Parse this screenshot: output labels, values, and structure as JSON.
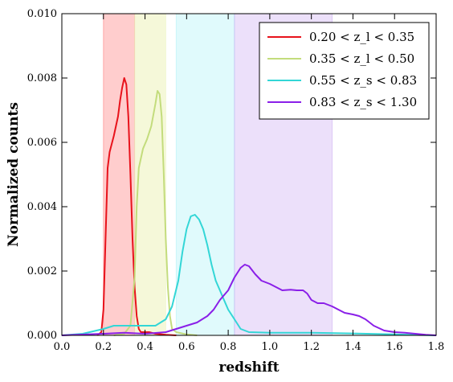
{
  "chart_data": {
    "type": "line",
    "xlabel": "redshift",
    "ylabel": "Normalized counts",
    "xlim": [
      0.0,
      1.8
    ],
    "ylim": [
      0.0,
      0.01
    ],
    "x_ticks": [
      "0.0",
      "0.2",
      "0.4",
      "0.6",
      "0.8",
      "1.0",
      "1.2",
      "1.4",
      "1.6",
      "1.8"
    ],
    "y_ticks": [
      "0.000",
      "0.002",
      "0.004",
      "0.006",
      "0.008",
      "0.010"
    ],
    "grid": false,
    "legend_position": "top-right",
    "bands": [
      {
        "range": [
          0.2,
          0.35
        ],
        "color": "#ff6f6f"
      },
      {
        "range": [
          0.35,
          0.5
        ],
        "color": "#eef3c0"
      },
      {
        "range": [
          0.55,
          0.83
        ],
        "color": "#a6f0f5"
      },
      {
        "range": [
          0.83,
          1.3
        ],
        "color": "#c8a6f2"
      }
    ],
    "series": [
      {
        "name": "0.20 < z_l < 0.35",
        "color": "#e8121b",
        "points": [
          [
            0.17,
            0
          ],
          [
            0.19,
            0.0001
          ],
          [
            0.2,
            0.0008
          ],
          [
            0.21,
            0.003
          ],
          [
            0.22,
            0.0052
          ],
          [
            0.23,
            0.0057
          ],
          [
            0.25,
            0.0062
          ],
          [
            0.27,
            0.0068
          ],
          [
            0.28,
            0.0073
          ],
          [
            0.29,
            0.0077
          ],
          [
            0.3,
            0.008
          ],
          [
            0.31,
            0.0078
          ],
          [
            0.32,
            0.0068
          ],
          [
            0.33,
            0.005
          ],
          [
            0.34,
            0.003
          ],
          [
            0.35,
            0.0015
          ],
          [
            0.36,
            0.0006
          ],
          [
            0.37,
            0.0002
          ],
          [
            0.38,
            0.0001
          ],
          [
            0.4,
            0.0001
          ],
          [
            0.42,
            0.0001
          ],
          [
            0.45,
            5e-05
          ],
          [
            0.5,
            2e-05
          ],
          [
            0.55,
            0
          ]
        ]
      },
      {
        "name": "0.35 < z_l < 0.50",
        "color": "#c3dc7c",
        "points": [
          [
            0.25,
            0
          ],
          [
            0.3,
            5e-05
          ],
          [
            0.33,
            0.0003
          ],
          [
            0.35,
            0.0018
          ],
          [
            0.36,
            0.004
          ],
          [
            0.37,
            0.0052
          ],
          [
            0.39,
            0.0058
          ],
          [
            0.41,
            0.0061
          ],
          [
            0.43,
            0.0065
          ],
          [
            0.45,
            0.0072
          ],
          [
            0.46,
            0.0076
          ],
          [
            0.47,
            0.0075
          ],
          [
            0.48,
            0.0068
          ],
          [
            0.49,
            0.005
          ],
          [
            0.5,
            0.003
          ],
          [
            0.51,
            0.0015
          ],
          [
            0.52,
            0.0006
          ],
          [
            0.53,
            0.0002
          ],
          [
            0.55,
            0.0001
          ],
          [
            0.6,
            3e-05
          ],
          [
            0.65,
            0
          ]
        ]
      },
      {
        "name": "0.55 < z_s < 0.83",
        "color": "#33d6d6",
        "points": [
          [
            0.0,
            0
          ],
          [
            0.1,
            5e-05
          ],
          [
            0.2,
            0.0002
          ],
          [
            0.25,
            0.0003
          ],
          [
            0.3,
            0.0003
          ],
          [
            0.35,
            0.0003
          ],
          [
            0.4,
            0.0003
          ],
          [
            0.45,
            0.0003
          ],
          [
            0.5,
            0.0005
          ],
          [
            0.53,
            0.0009
          ],
          [
            0.56,
            0.0017
          ],
          [
            0.58,
            0.0026
          ],
          [
            0.6,
            0.0033
          ],
          [
            0.62,
            0.0037
          ],
          [
            0.64,
            0.00375
          ],
          [
            0.66,
            0.0036
          ],
          [
            0.68,
            0.0033
          ],
          [
            0.7,
            0.0028
          ],
          [
            0.72,
            0.0022
          ],
          [
            0.74,
            0.0017
          ],
          [
            0.76,
            0.0014
          ],
          [
            0.78,
            0.0011
          ],
          [
            0.8,
            0.0008
          ],
          [
            0.83,
            0.0005
          ],
          [
            0.86,
            0.0002
          ],
          [
            0.9,
            0.0001
          ],
          [
            1.0,
            8e-05
          ],
          [
            1.2,
            8e-05
          ],
          [
            1.4,
            6e-05
          ],
          [
            1.6,
            3e-05
          ],
          [
            1.8,
            0
          ]
        ]
      },
      {
        "name": "0.83 < z_s < 1.30",
        "color": "#8a1fe8",
        "points": [
          [
            0.0,
            0
          ],
          [
            0.2,
            5e-05
          ],
          [
            0.3,
            8e-05
          ],
          [
            0.4,
            5e-05
          ],
          [
            0.5,
            0.0001
          ],
          [
            0.55,
            0.0002
          ],
          [
            0.6,
            0.0003
          ],
          [
            0.65,
            0.0004
          ],
          [
            0.7,
            0.0006
          ],
          [
            0.73,
            0.0008
          ],
          [
            0.76,
            0.0011
          ],
          [
            0.8,
            0.0014
          ],
          [
            0.83,
            0.0018
          ],
          [
            0.86,
            0.0021
          ],
          [
            0.88,
            0.0022
          ],
          [
            0.9,
            0.00215
          ],
          [
            0.93,
            0.0019
          ],
          [
            0.96,
            0.0017
          ],
          [
            1.0,
            0.0016
          ],
          [
            1.03,
            0.0015
          ],
          [
            1.06,
            0.0014
          ],
          [
            1.1,
            0.00142
          ],
          [
            1.13,
            0.0014
          ],
          [
            1.16,
            0.0014
          ],
          [
            1.18,
            0.0013
          ],
          [
            1.2,
            0.0011
          ],
          [
            1.23,
            0.001
          ],
          [
            1.26,
            0.001
          ],
          [
            1.3,
            0.0009
          ],
          [
            1.33,
            0.0008
          ],
          [
            1.36,
            0.0007
          ],
          [
            1.4,
            0.00065
          ],
          [
            1.43,
            0.0006
          ],
          [
            1.46,
            0.0005
          ],
          [
            1.48,
            0.0004
          ],
          [
            1.5,
            0.0003
          ],
          [
            1.55,
            0.00015
          ],
          [
            1.6,
            0.0001
          ],
          [
            1.65,
            8e-05
          ],
          [
            1.7,
            5e-05
          ],
          [
            1.75,
            2e-05
          ],
          [
            1.8,
            0
          ]
        ]
      }
    ]
  }
}
